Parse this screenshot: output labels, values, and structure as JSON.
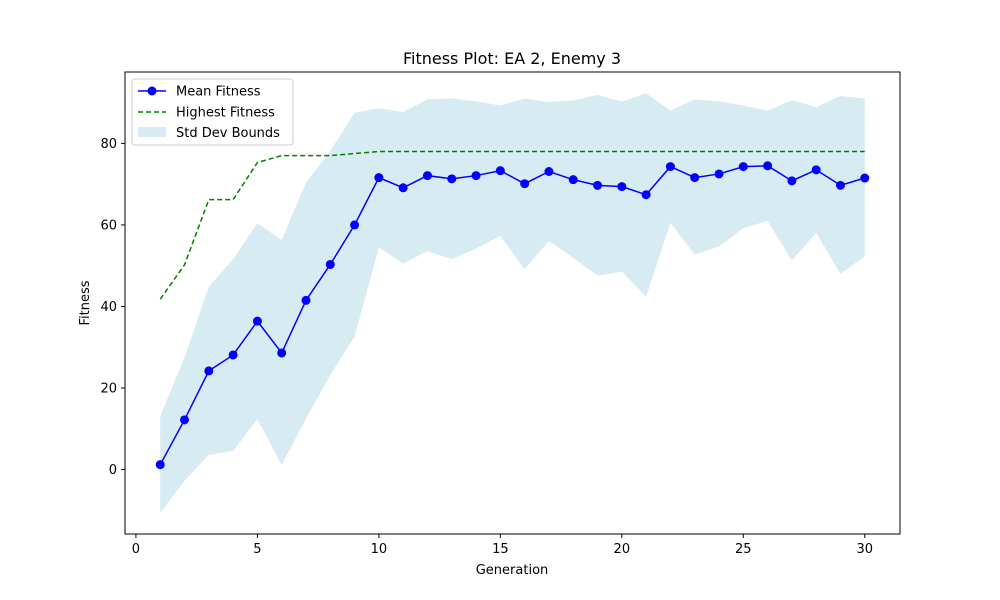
{
  "chart_data": {
    "type": "line",
    "title": "Fitness Plot: EA 2, Enemy 3",
    "xlabel": "Generation",
    "ylabel": "Fitness",
    "xlim": [
      -0.45,
      31.45
    ],
    "ylim": [
      -15.8,
      97.5
    ],
    "xticks": [
      0,
      5,
      10,
      15,
      20,
      25,
      30
    ],
    "yticks": [
      0,
      20,
      40,
      60,
      80
    ],
    "grid": false,
    "legend_position": "top-left",
    "x": [
      1,
      2,
      3,
      4,
      5,
      6,
      7,
      8,
      9,
      10,
      11,
      12,
      13,
      14,
      15,
      16,
      17,
      18,
      19,
      20,
      21,
      22,
      23,
      24,
      25,
      26,
      27,
      28,
      29,
      30
    ],
    "series": [
      {
        "name": "Mean Fitness",
        "style": "line-with-markers",
        "color": "#0000ff",
        "values": [
          1.2,
          12.2,
          24.2,
          28.1,
          36.4,
          28.6,
          41.5,
          50.3,
          60.0,
          71.6,
          69.1,
          72.1,
          71.3,
          72.1,
          73.3,
          70.1,
          73.1,
          71.1,
          69.7,
          69.4,
          67.4,
          74.3,
          71.6,
          72.5,
          74.3,
          74.5,
          70.8,
          73.5,
          69.7,
          71.5
        ]
      },
      {
        "name": "Highest Fitness",
        "style": "dashed-line",
        "color": "#008000",
        "values": [
          41.8,
          50.2,
          66.2,
          66.2,
          75.3,
          77.0,
          77.0,
          77.0,
          77.5,
          78.0,
          78.0,
          78.0,
          78.0,
          78.0,
          78.0,
          78.0,
          78.0,
          78.0,
          78.0,
          78.0,
          78.0,
          78.0,
          78.0,
          78.0,
          78.0,
          78.0,
          78.0,
          78.0,
          78.0,
          78.0
        ]
      },
      {
        "name": "Std Dev Bounds",
        "style": "filled-band",
        "color": "#add8e6",
        "upper": [
          13.1,
          27.5,
          44.8,
          51.6,
          60.4,
          56.3,
          70.4,
          78.1,
          87.5,
          88.6,
          87.7,
          90.8,
          91.0,
          90.3,
          89.3,
          91.0,
          90.1,
          90.5,
          91.9,
          90.2,
          92.3,
          88.0,
          90.8,
          90.3,
          89.3,
          88.0,
          90.6,
          88.9,
          91.6,
          91.0
        ],
        "lower": [
          -10.6,
          -2.7,
          3.6,
          4.6,
          12.4,
          1.1,
          12.5,
          23.2,
          32.6,
          54.5,
          50.5,
          53.6,
          51.6,
          54.2,
          57.3,
          49.1,
          56.1,
          51.9,
          47.6,
          48.5,
          42.4,
          60.5,
          52.7,
          54.7,
          59.2,
          61.0,
          51.3,
          58.1,
          48.0,
          52.3
        ]
      }
    ]
  }
}
